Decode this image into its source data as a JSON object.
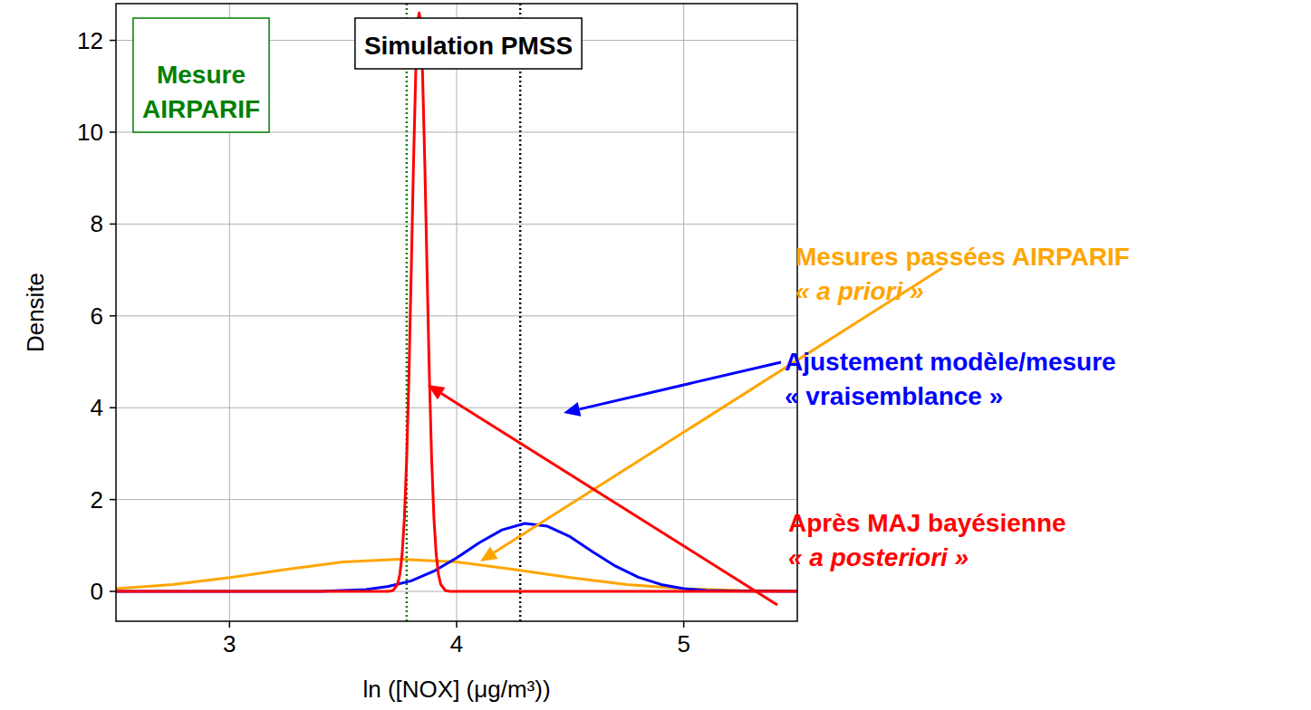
{
  "chart_data": {
    "type": "line",
    "x_label": "ln ([NOX] (μg/m³))",
    "y_label": "Densite",
    "xlim": [
      2.5,
      5.5
    ],
    "xticks": [
      3,
      4,
      5
    ],
    "ylim": [
      -0.65,
      12.8
    ],
    "yticks": [
      0,
      2,
      4,
      6,
      8,
      10,
      12
    ],
    "grid": true,
    "reference_lines": [
      {
        "x": 3.78,
        "label": "Mesure AIRPARIF",
        "color": "#008000"
      },
      {
        "x": 4.28,
        "label": "Simulation PMSS",
        "color": "#000000"
      }
    ],
    "series": [
      {
        "name": "Mesures passées AIRPARIF",
        "description": "« a priori »",
        "color": "#ffa500",
        "x": [
          2.5,
          2.75,
          3.0,
          3.25,
          3.5,
          3.75,
          4.0,
          4.25,
          4.5,
          4.75,
          5.0,
          5.25,
          5.5
        ],
        "values": [
          0.06,
          0.15,
          0.3,
          0.48,
          0.64,
          0.7,
          0.64,
          0.48,
          0.3,
          0.15,
          0.06,
          0.02,
          0.01
        ]
      },
      {
        "name": "Ajustement modèle/mesure",
        "description": "« vraisemblance »",
        "color": "#0000ff",
        "x": [
          2.5,
          3.4,
          3.5,
          3.6,
          3.7,
          3.8,
          3.9,
          4.0,
          4.1,
          4.2,
          4.3,
          4.4,
          4.5,
          4.6,
          4.7,
          4.8,
          4.9,
          5.0,
          5.1,
          5.2,
          5.5
        ],
        "values": [
          0.0,
          0.0,
          0.02,
          0.04,
          0.11,
          0.23,
          0.44,
          0.73,
          1.06,
          1.34,
          1.48,
          1.42,
          1.19,
          0.86,
          0.55,
          0.31,
          0.15,
          0.06,
          0.02,
          0.01,
          0.0
        ]
      },
      {
        "name": "Après MAJ bayésienne",
        "description": "« a posteriori »",
        "color": "#ff0000",
        "x": [
          2.5,
          3.7,
          3.72,
          3.74,
          3.75,
          3.76,
          3.77,
          3.78,
          3.79,
          3.8,
          3.81,
          3.82,
          3.83,
          3.835,
          3.84,
          3.85,
          3.86,
          3.87,
          3.88,
          3.89,
          3.9,
          3.91,
          3.92,
          3.93,
          3.95,
          3.97,
          5.5
        ],
        "values": [
          0.0,
          0.0,
          0.02,
          0.15,
          0.37,
          0.81,
          1.6,
          2.88,
          4.69,
          6.93,
          9.29,
          11.29,
          12.45,
          12.6,
          12.45,
          11.29,
          9.29,
          6.93,
          4.69,
          2.88,
          1.6,
          0.81,
          0.37,
          0.15,
          0.02,
          0.0,
          0.0
        ]
      }
    ]
  }
}
